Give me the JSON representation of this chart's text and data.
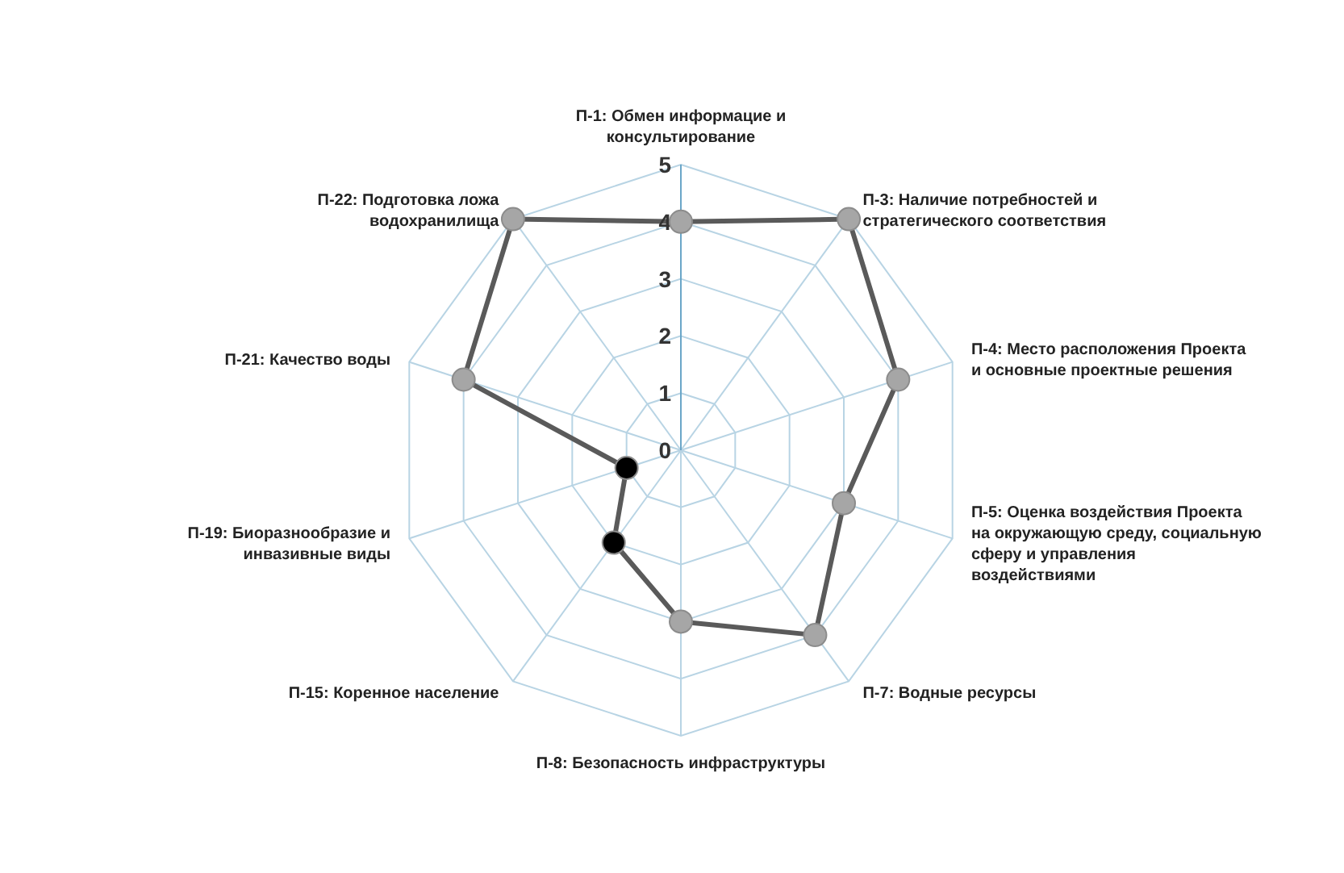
{
  "chart_data": {
    "type": "radar",
    "categories": [
      "П-1: Обмен информацие и консультирование",
      "П-3: Наличие потребностей и стратегического соответствия",
      "П-4: Место расположения Проекта и основные проектные решения",
      "П-5: Оценка воздействия Проекта на окружающую среду, социальную сферу и управления воздействиями",
      "П-7: Водные ресурсы",
      "П-8: Безопасность инфраструктуры",
      "П-15: Коренное население",
      "П-19: Биоразнообразие и инвазивные виды",
      "П-21: Качество воды",
      "П-22: Подготовка ложа водохранилища"
    ],
    "series": [
      {
        "color": "#5a5a5a",
        "colors": [
          "#a6a6a6",
          "#a6a6a6",
          "#a6a6a6",
          "#a6a6a6",
          "#a6a6a6",
          "#a6a6a6",
          "#000000",
          "#000000",
          "#a6a6a6",
          "#a6a6a6"
        ],
        "values": [
          4,
          5,
          4,
          3,
          4,
          3,
          2,
          1,
          4,
          5
        ]
      }
    ],
    "ylim": [
      0,
      5
    ],
    "yticks": [
      0,
      1,
      2,
      3,
      4,
      5
    ],
    "grid": true,
    "marker": "circle"
  }
}
